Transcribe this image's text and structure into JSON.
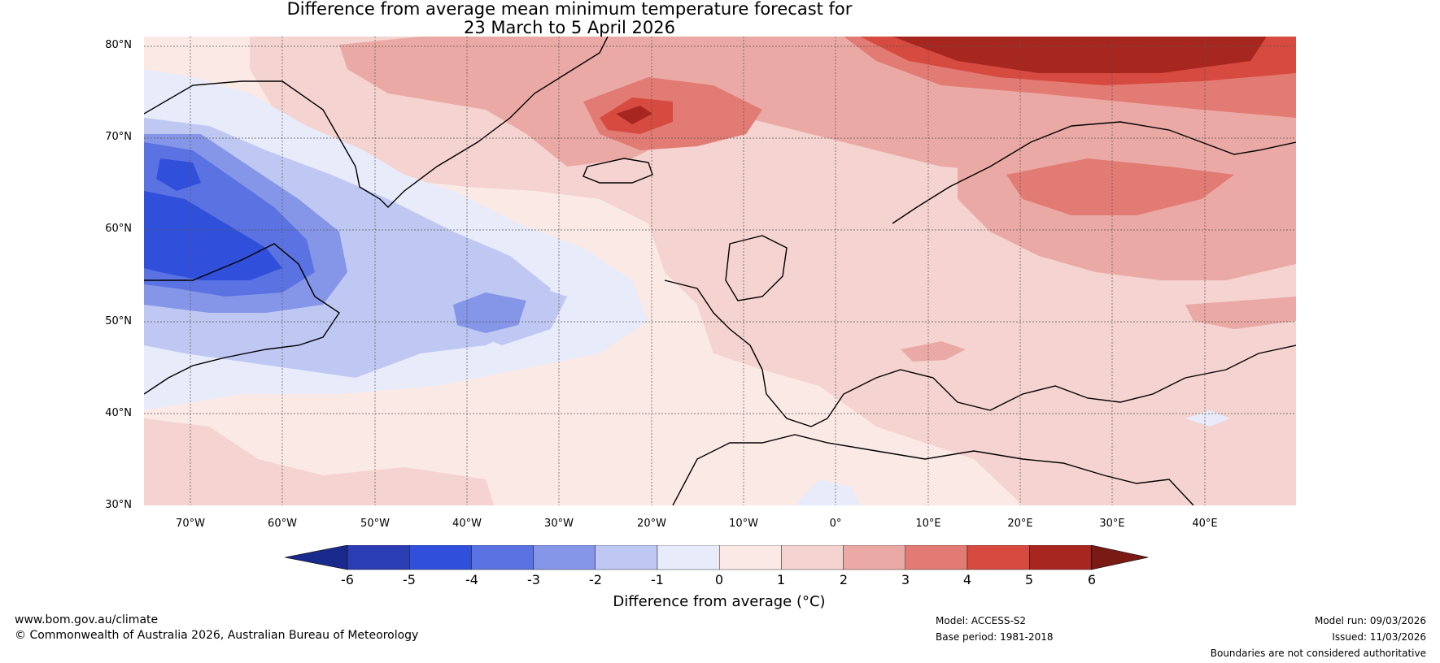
{
  "title": {
    "line1": "Difference from average mean minimum temperature forecast for",
    "line2": "23 March to 5 April 2026"
  },
  "latitude_labels": [
    "80°N",
    "70°N",
    "60°N",
    "50°N",
    "40°N",
    "30°N"
  ],
  "longitude_labels": [
    "70°W",
    "60°W",
    "50°W",
    "40°W",
    "30°W",
    "20°W",
    "10°W",
    "0°",
    "10°E",
    "20°E",
    "30°E",
    "40°E"
  ],
  "colorbar": {
    "title": "Difference from average (°C)",
    "tick_labels": [
      "-6",
      "-5",
      "-4",
      "-3",
      "-2",
      "-1",
      "0",
      "1",
      "2",
      "3",
      "4",
      "5",
      "6"
    ],
    "colors": [
      "#1a2a8c",
      "#2a3db3",
      "#3050dc",
      "#5a72e2",
      "#8596e8",
      "#bfc8f2",
      "#e8ebfa",
      "#fbe9e6",
      "#f4d3d0",
      "#eba9a5",
      "#e27b74",
      "#d64a40",
      "#a82620",
      "#7a1a15"
    ]
  },
  "footer": {
    "website": "www.bom.gov.au/climate",
    "copyright": "© Commonwealth of Australia 2026, Australian Bureau of Meteorology",
    "model": "Model: ACCESS-S2",
    "base_period": "Base period: 1981-2018",
    "model_run": "Model run: 09/03/2026",
    "issued": "Issued: 11/03/2026",
    "disclaimer": "Boundaries are not considered authoritative"
  }
}
